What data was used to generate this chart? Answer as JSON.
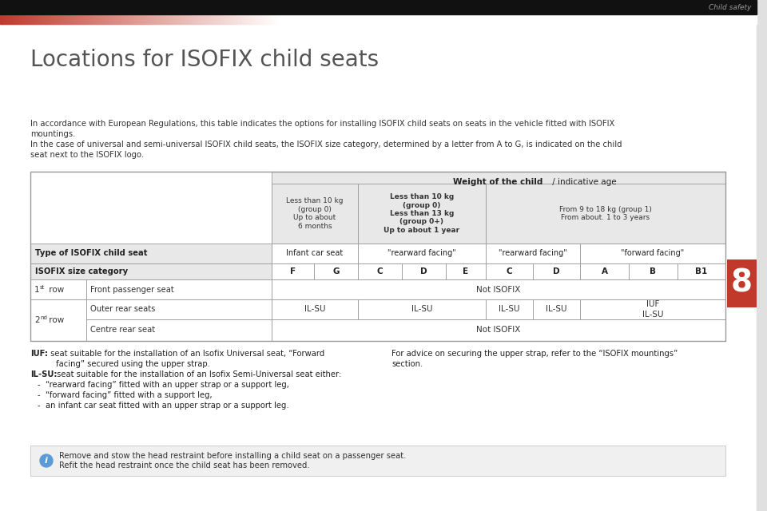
{
  "page_title": "Locations for ISOFIX child seats",
  "header_text": "Child safety",
  "para1_line1": "In accordance with European Regulations, this table indicates the options for installing ISOFIX child seats on seats in the vehicle fitted with ISOFIX",
  "para1_line2": "mountings.",
  "para1_line3": "In the case of universal and semi-universal ISOFIX child seats, the ISOFIX size category, determined by a letter from A to G, is indicated on the child",
  "para1_line4": "seat next to the ISOFIX logo.",
  "table_weight_header_bold": "Weight of the child",
  "table_weight_header_normal": " / indicative age",
  "col_group1_header": "Less than 10 kg\n(group 0)\nUp to about\n6 months",
  "col_group2_header": "Less than 10 kg\n(group 0)\nLess than 13 kg\n(group 0+)\nUp to about 1 year",
  "col_group3_header": "From 9 to 18 kg (group 1)\nFrom about. 1 to 3 years",
  "row_type_label": "Type of ISOFIX child seat",
  "row_size_label": "ISOFIX size category",
  "col_type_infant": "Infant car seat",
  "col_type_rear1": "\"rearward facing\"",
  "col_type_rear2": "\"rearward facing\"",
  "col_type_fwd": "\"forward facing\"",
  "size_cats": [
    "F",
    "G",
    "C",
    "D",
    "E",
    "C",
    "D",
    "A",
    "B",
    "B1"
  ],
  "row1_label1a": "1",
  "row1_label1b": "st",
  "row1_label1c": " row",
  "row1_label2": "Front passenger seat",
  "row1_data": "Not ISOFIX",
  "row2_label1a": "2",
  "row2_label1b": "nd",
  "row2_label1c": " row",
  "row2_label2a": "Outer rear seats",
  "row2_data_fg": "IL-SU",
  "row2_data_cde_grp1": "IL-SU",
  "row2_data_cde_grp2": "IL-SU",
  "row2_data_c_grp3": "IL-SU",
  "row2_data_d_grp3": "IL-SU",
  "row2_data_abd": "IUF\nIL-SU",
  "row2_label2b": "Centre rear seat",
  "row2_data_b": "Not ISOFIX",
  "footer_iuf_bold": "IUF:",
  "footer_iuf_text": " seat suitable for the installation of an Isofix Universal seat, “Forward",
  "footer_iuf_text2": "facing” secured using the upper strap.",
  "footer_ilsu_bold": "IL-SU:",
  "footer_ilsu_text": " seat suitable for the installation of an Isofix Semi-Universal seat either:",
  "footer_bullets": [
    "“rearward facing” fitted with an upper strap or a support leg,",
    "“forward facing” fitted with a support leg,",
    "an infant car seat fitted with an upper strap or a support leg."
  ],
  "footer_right_line1": "For advice on securing the upper strap, refer to the “ISOFIX mountings”",
  "footer_right_line2": "section.",
  "info_line1": "Remove and stow the head restraint before installing a child seat on a passenger seat.",
  "info_line2": "Refit the head restraint once the child seat has been removed.",
  "bg_color": "#ffffff",
  "black_bar_color": "#111111",
  "red_bar_color": "#c0392b",
  "table_header_bg": "#e8e8e8",
  "table_border": "#999999",
  "text_color": "#333333",
  "gray_text": "#888888",
  "info_bg": "#f0f0f0",
  "info_border": "#cccccc",
  "chapter_num_color": "#c0392b",
  "chapter_num": "8",
  "right_border_color": "#e0e0e0"
}
